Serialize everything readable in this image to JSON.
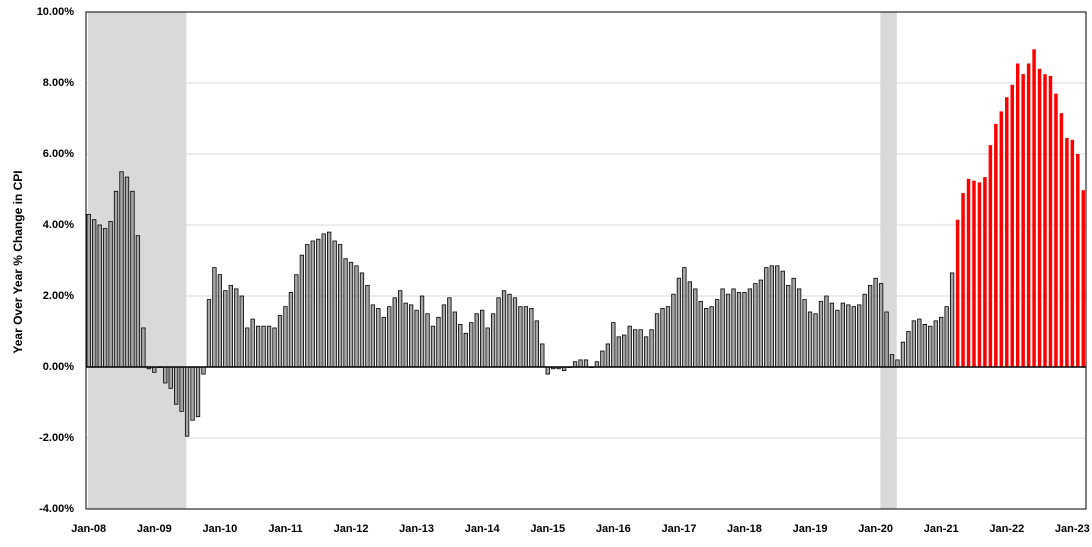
{
  "chart_data": {
    "type": "bar",
    "y_label": "Year  Over Year % Change in CPI",
    "categories": [
      "Jan-08",
      null,
      null,
      null,
      null,
      null,
      null,
      null,
      null,
      null,
      null,
      null,
      "Jan-09",
      null,
      null,
      null,
      null,
      null,
      null,
      null,
      null,
      null,
      null,
      null,
      "Jan-10",
      null,
      null,
      null,
      null,
      null,
      null,
      null,
      null,
      null,
      null,
      null,
      "Jan-11",
      null,
      null,
      null,
      null,
      null,
      null,
      null,
      null,
      null,
      null,
      null,
      "Jan-12",
      null,
      null,
      null,
      null,
      null,
      null,
      null,
      null,
      null,
      null,
      null,
      "Jan-13",
      null,
      null,
      null,
      null,
      null,
      null,
      null,
      null,
      null,
      null,
      null,
      "Jan-14",
      null,
      null,
      null,
      null,
      null,
      null,
      null,
      null,
      null,
      null,
      null,
      "Jan-15",
      null,
      null,
      null,
      null,
      null,
      null,
      null,
      null,
      null,
      null,
      null,
      "Jan-16",
      null,
      null,
      null,
      null,
      null,
      null,
      null,
      null,
      null,
      null,
      null,
      "Jan-17",
      null,
      null,
      null,
      null,
      null,
      null,
      null,
      null,
      null,
      null,
      null,
      "Jan-18",
      null,
      null,
      null,
      null,
      null,
      null,
      null,
      null,
      null,
      null,
      null,
      "Jan-19",
      null,
      null,
      null,
      null,
      null,
      null,
      null,
      null,
      null,
      null,
      null,
      "Jan-20",
      null,
      null,
      null,
      null,
      null,
      null,
      null,
      null,
      null,
      null,
      null,
      "Jan-21",
      null,
      null,
      null,
      null,
      null,
      null,
      null,
      null,
      null,
      null,
      null,
      "Jan-22",
      null,
      null,
      null,
      null,
      null,
      null,
      null,
      null,
      null,
      null,
      null,
      "Jan-23",
      null,
      null
    ],
    "series": [
      {
        "color": "#a6a6a6",
        "values": [
          4.3,
          4.15,
          4.0,
          3.9,
          4.1,
          4.95,
          5.5,
          5.35,
          4.95,
          3.7,
          1.1,
          -0.05,
          -0.15,
          0.0,
          -0.45,
          -0.6,
          -1.05,
          -1.25,
          -1.95,
          -1.5,
          -1.4,
          -0.2,
          1.9,
          2.8,
          2.6,
          2.15,
          2.3,
          2.2,
          2.0,
          1.1,
          1.35,
          1.15,
          1.15,
          1.15,
          1.1,
          1.45,
          1.7,
          2.1,
          2.6,
          3.15,
          3.45,
          3.55,
          3.6,
          3.75,
          3.8,
          3.55,
          3.45,
          3.05,
          2.95,
          2.85,
          2.65,
          2.3,
          1.75,
          1.65,
          1.4,
          1.7,
          1.95,
          2.15,
          1.8,
          1.75,
          1.6,
          2.0,
          1.5,
          1.15,
          1.4,
          1.75,
          1.95,
          1.55,
          1.2,
          0.95,
          1.25,
          1.5,
          1.6,
          1.1,
          1.5,
          1.95,
          2.15,
          2.05,
          1.95,
          1.7,
          1.7,
          1.65,
          1.3,
          0.65,
          -0.2,
          -0.05,
          -0.05,
          -0.1,
          0.0,
          0.15,
          0.2,
          0.2,
          0.0,
          0.15,
          0.45,
          0.65,
          1.25,
          0.85,
          0.9,
          1.15,
          1.05,
          1.05,
          0.85,
          1.05,
          1.5,
          1.65,
          1.7,
          2.05,
          2.5,
          2.8,
          2.4,
          2.2,
          1.85,
          1.65,
          1.7,
          1.9,
          2.2,
          2.05,
          2.2,
          2.1,
          2.1,
          2.2,
          2.35,
          2.45,
          2.8,
          2.85,
          2.85,
          2.7,
          2.3,
          2.5,
          2.2,
          1.9,
          1.55,
          1.5,
          1.85,
          2.0,
          1.8,
          1.6,
          1.8,
          1.75,
          1.7,
          1.75,
          2.05,
          2.3,
          2.5,
          2.35,
          1.55,
          0.35,
          0.2,
          0.7,
          1.0,
          1.3,
          1.35,
          1.2,
          1.15,
          1.3,
          1.4,
          1.7,
          2.65,
          null,
          null,
          null,
          null,
          null,
          null,
          null,
          null,
          null,
          null,
          null,
          null,
          null,
          null,
          null,
          null,
          null,
          null,
          null,
          null,
          null,
          null,
          null,
          null
        ]
      },
      {
        "color": "#ff0000",
        "values": [
          null,
          null,
          null,
          null,
          null,
          null,
          null,
          null,
          null,
          null,
          null,
          null,
          null,
          null,
          null,
          null,
          null,
          null,
          null,
          null,
          null,
          null,
          null,
          null,
          null,
          null,
          null,
          null,
          null,
          null,
          null,
          null,
          null,
          null,
          null,
          null,
          null,
          null,
          null,
          null,
          null,
          null,
          null,
          null,
          null,
          null,
          null,
          null,
          null,
          null,
          null,
          null,
          null,
          null,
          null,
          null,
          null,
          null,
          null,
          null,
          null,
          null,
          null,
          null,
          null,
          null,
          null,
          null,
          null,
          null,
          null,
          null,
          null,
          null,
          null,
          null,
          null,
          null,
          null,
          null,
          null,
          null,
          null,
          null,
          null,
          null,
          null,
          null,
          null,
          null,
          null,
          null,
          null,
          null,
          null,
          null,
          null,
          null,
          null,
          null,
          null,
          null,
          null,
          null,
          null,
          null,
          null,
          null,
          null,
          null,
          null,
          null,
          null,
          null,
          null,
          null,
          null,
          null,
          null,
          null,
          null,
          null,
          null,
          null,
          null,
          null,
          null,
          null,
          null,
          null,
          null,
          null,
          null,
          null,
          null,
          null,
          null,
          null,
          null,
          null,
          null,
          null,
          null,
          null,
          null,
          null,
          null,
          null,
          null,
          null,
          null,
          null,
          null,
          null,
          null,
          null,
          null,
          null,
          null,
          4.15,
          4.9,
          5.3,
          5.25,
          5.2,
          5.35,
          6.25,
          6.85,
          7.2,
          7.6,
          7.95,
          8.55,
          8.25,
          8.55,
          8.95,
          8.4,
          8.25,
          8.2,
          7.7,
          7.15,
          6.45,
          6.4,
          6.0,
          4.98
        ]
      }
    ],
    "shaded_spans": [
      [
        0,
        17
      ],
      [
        145,
        147
      ]
    ],
    "shade_color": "#d9d9d9",
    "ylim": [
      -4,
      10
    ],
    "yticks": [
      {
        "value": -4,
        "label": "-4.00%"
      },
      {
        "value": -2,
        "label": "-2.00%"
      },
      {
        "value": 0,
        "label": "0.00%"
      },
      {
        "value": 2,
        "label": "2.00%"
      },
      {
        "value": 4,
        "label": "4.00%"
      },
      {
        "value": 6,
        "label": "6.00%"
      },
      {
        "value": 8,
        "label": "8.00%"
      },
      {
        "value": 10,
        "label": "10.00%"
      }
    ],
    "grid": true
  }
}
